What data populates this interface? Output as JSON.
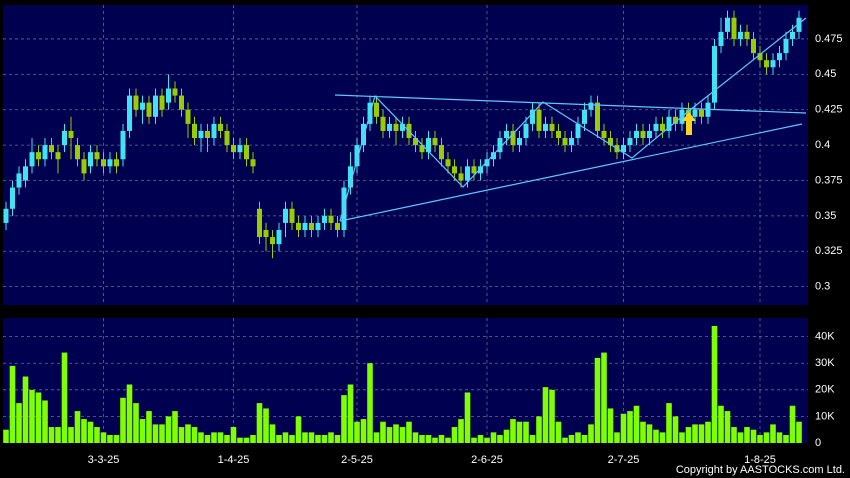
{
  "copyright": "Copyright by AASTOCKS.com Ltd.",
  "chart_data": [
    {
      "type": "candlestick",
      "up_color": "#3fe3f3",
      "down_color": "#9acd00",
      "grid": true,
      "ylim": [
        0.287,
        0.499
      ],
      "yticks": [
        0.3,
        0.325,
        0.35,
        0.375,
        0.4,
        0.425,
        0.45,
        0.475
      ],
      "open": [
        0.345,
        0.355,
        0.37,
        0.375,
        0.385,
        0.395,
        0.39,
        0.4,
        0.395,
        0.4,
        0.41,
        0.4,
        0.39,
        0.385,
        0.395,
        0.39,
        0.385,
        0.39,
        0.39,
        0.41,
        0.435,
        0.425,
        0.43,
        0.42,
        0.435,
        0.43,
        0.44,
        0.435,
        0.425,
        0.415,
        0.405,
        0.41,
        0.405,
        0.415,
        0.41,
        0.4,
        0.395,
        0.4,
        0.39,
        0.355,
        0.34,
        0.335,
        0.33,
        0.345,
        0.355,
        0.345,
        0.34,
        0.345,
        0.34,
        0.345,
        0.35,
        0.345,
        0.34,
        0.37,
        0.385,
        0.4,
        0.415,
        0.43,
        0.42,
        0.41,
        0.415,
        0.41,
        0.415,
        0.405,
        0.4,
        0.395,
        0.405,
        0.4,
        0.39,
        0.385,
        0.38,
        0.375,
        0.385,
        0.38,
        0.385,
        0.39,
        0.395,
        0.405,
        0.41,
        0.4,
        0.405,
        0.415,
        0.425,
        0.41,
        0.415,
        0.41,
        0.405,
        0.4,
        0.405,
        0.415,
        0.425,
        0.43,
        0.41,
        0.405,
        0.4,
        0.395,
        0.4,
        0.405,
        0.41,
        0.405,
        0.41,
        0.415,
        0.41,
        0.42,
        0.415,
        0.425,
        0.42,
        0.425,
        0.42,
        0.43,
        0.47,
        0.48,
        0.49,
        0.475,
        0.48,
        0.475,
        0.465,
        0.46,
        0.455,
        0.46,
        0.465,
        0.475,
        0.48
      ],
      "high": [
        0.36,
        0.375,
        0.385,
        0.39,
        0.405,
        0.4,
        0.405,
        0.405,
        0.4,
        0.415,
        0.42,
        0.405,
        0.395,
        0.4,
        0.4,
        0.395,
        0.395,
        0.395,
        0.415,
        0.44,
        0.44,
        0.435,
        0.435,
        0.44,
        0.44,
        0.45,
        0.445,
        0.44,
        0.43,
        0.42,
        0.415,
        0.415,
        0.42,
        0.42,
        0.415,
        0.405,
        0.405,
        0.405,
        0.395,
        0.36,
        0.345,
        0.34,
        0.345,
        0.36,
        0.36,
        0.35,
        0.35,
        0.35,
        0.35,
        0.355,
        0.355,
        0.35,
        0.375,
        0.395,
        0.405,
        0.42,
        0.435,
        0.435,
        0.425,
        0.42,
        0.42,
        0.42,
        0.42,
        0.41,
        0.405,
        0.41,
        0.41,
        0.405,
        0.395,
        0.39,
        0.385,
        0.39,
        0.39,
        0.39,
        0.395,
        0.4,
        0.41,
        0.415,
        0.415,
        0.41,
        0.42,
        0.43,
        0.43,
        0.42,
        0.42,
        0.415,
        0.41,
        0.41,
        0.42,
        0.43,
        0.435,
        0.435,
        0.415,
        0.41,
        0.405,
        0.405,
        0.41,
        0.415,
        0.415,
        0.415,
        0.42,
        0.42,
        0.425,
        0.425,
        0.43,
        0.43,
        0.43,
        0.43,
        0.435,
        0.475,
        0.49,
        0.495,
        0.495,
        0.485,
        0.485,
        0.48,
        0.47,
        0.465,
        0.465,
        0.47,
        0.48,
        0.485,
        0.495
      ],
      "low": [
        0.34,
        0.35,
        0.365,
        0.37,
        0.38,
        0.385,
        0.385,
        0.39,
        0.38,
        0.395,
        0.39,
        0.385,
        0.375,
        0.38,
        0.385,
        0.38,
        0.38,
        0.38,
        0.385,
        0.405,
        0.42,
        0.415,
        0.415,
        0.415,
        0.42,
        0.425,
        0.43,
        0.42,
        0.405,
        0.4,
        0.395,
        0.395,
        0.4,
        0.405,
        0.395,
        0.39,
        0.39,
        0.385,
        0.38,
        0.33,
        0.325,
        0.32,
        0.325,
        0.335,
        0.34,
        0.335,
        0.335,
        0.335,
        0.335,
        0.34,
        0.34,
        0.335,
        0.335,
        0.365,
        0.38,
        0.395,
        0.41,
        0.415,
        0.405,
        0.405,
        0.4,
        0.405,
        0.4,
        0.395,
        0.39,
        0.39,
        0.395,
        0.385,
        0.38,
        0.375,
        0.37,
        0.37,
        0.375,
        0.375,
        0.38,
        0.385,
        0.39,
        0.4,
        0.395,
        0.395,
        0.4,
        0.41,
        0.405,
        0.405,
        0.405,
        0.4,
        0.395,
        0.395,
        0.4,
        0.41,
        0.42,
        0.405,
        0.4,
        0.395,
        0.39,
        0.39,
        0.395,
        0.4,
        0.4,
        0.4,
        0.405,
        0.405,
        0.405,
        0.41,
        0.41,
        0.415,
        0.415,
        0.415,
        0.415,
        0.425,
        0.465,
        0.475,
        0.47,
        0.47,
        0.47,
        0.46,
        0.455,
        0.45,
        0.45,
        0.455,
        0.46,
        0.47,
        0.475
      ],
      "close": [
        0.355,
        0.37,
        0.38,
        0.385,
        0.395,
        0.39,
        0.4,
        0.395,
        0.39,
        0.41,
        0.405,
        0.39,
        0.38,
        0.395,
        0.39,
        0.385,
        0.39,
        0.385,
        0.41,
        0.435,
        0.425,
        0.43,
        0.42,
        0.435,
        0.425,
        0.44,
        0.435,
        0.425,
        0.415,
        0.405,
        0.41,
        0.405,
        0.415,
        0.41,
        0.4,
        0.395,
        0.4,
        0.39,
        0.385,
        0.335,
        0.335,
        0.33,
        0.34,
        0.355,
        0.345,
        0.34,
        0.345,
        0.34,
        0.345,
        0.35,
        0.345,
        0.34,
        0.37,
        0.385,
        0.4,
        0.415,
        0.43,
        0.42,
        0.41,
        0.415,
        0.41,
        0.415,
        0.405,
        0.4,
        0.395,
        0.405,
        0.4,
        0.39,
        0.385,
        0.38,
        0.375,
        0.385,
        0.38,
        0.385,
        0.39,
        0.395,
        0.405,
        0.41,
        0.4,
        0.405,
        0.415,
        0.425,
        0.41,
        0.415,
        0.41,
        0.405,
        0.4,
        0.405,
        0.415,
        0.425,
        0.43,
        0.41,
        0.405,
        0.4,
        0.395,
        0.4,
        0.405,
        0.41,
        0.405,
        0.41,
        0.415,
        0.41,
        0.42,
        0.415,
        0.425,
        0.42,
        0.425,
        0.42,
        0.43,
        0.47,
        0.48,
        0.49,
        0.475,
        0.48,
        0.475,
        0.465,
        0.46,
        0.455,
        0.46,
        0.465,
        0.475,
        0.48,
        0.49
      ]
    },
    {
      "type": "bar",
      "color": "#80ff00",
      "grid": true,
      "ylim": [
        0,
        47000
      ],
      "yticks": [
        0,
        {
          "value": 10000,
          "label": "10K"
        },
        {
          "value": 20000,
          "label": "20K"
        },
        {
          "value": 30000,
          "label": "30K"
        },
        {
          "value": 40000,
          "label": "40K"
        }
      ],
      "categories": [
        null,
        null,
        null,
        null,
        null,
        null,
        null,
        null,
        null,
        null,
        null,
        null,
        null,
        null,
        null,
        "3-3-25",
        null,
        null,
        null,
        null,
        null,
        null,
        null,
        null,
        null,
        null,
        null,
        null,
        null,
        null,
        null,
        null,
        null,
        null,
        null,
        "1-4-25",
        null,
        null,
        null,
        null,
        null,
        null,
        null,
        null,
        null,
        null,
        null,
        null,
        null,
        null,
        null,
        null,
        null,
        null,
        "2-5-25",
        null,
        null,
        null,
        null,
        null,
        null,
        null,
        null,
        null,
        null,
        null,
        null,
        null,
        null,
        null,
        null,
        null,
        null,
        null,
        "2-6-25",
        null,
        null,
        null,
        null,
        null,
        null,
        null,
        null,
        null,
        null,
        null,
        null,
        null,
        null,
        null,
        null,
        null,
        null,
        null,
        null,
        "2-7-25",
        null,
        null,
        null,
        null,
        null,
        null,
        null,
        null,
        null,
        null,
        null,
        null,
        null,
        null,
        null,
        null,
        null,
        null,
        null,
        null,
        "1-8-25",
        null,
        null,
        null,
        null,
        null,
        null
      ],
      "values": [
        5000,
        29000,
        15000,
        25000,
        20000,
        19000,
        16000,
        6000,
        6000,
        34000,
        6000,
        12000,
        9000,
        8000,
        6000,
        4000,
        3000,
        3000,
        17000,
        22000,
        15000,
        9000,
        12000,
        7000,
        7000,
        10000,
        12000,
        6000,
        7000,
        6000,
        4000,
        3000,
        4000,
        4000,
        3000,
        6000,
        2000,
        2000,
        3000,
        15000,
        13000,
        7000,
        3000,
        4000,
        3000,
        10000,
        4000,
        4000,
        3000,
        3000,
        4000,
        3000,
        18000,
        22000,
        8000,
        9000,
        30000,
        4000,
        8000,
        6000,
        7000,
        6000,
        8000,
        4000,
        3000,
        3000,
        2000,
        3000,
        2000,
        6000,
        9000,
        19000,
        2000,
        3000,
        2000,
        4000,
        3000,
        5000,
        9000,
        8000,
        8000,
        3000,
        10000,
        21000,
        20000,
        8000,
        2000,
        3000,
        4000,
        3000,
        7000,
        32000,
        34000,
        13000,
        4000,
        11000,
        12000,
        14000,
        8000,
        7000,
        5000,
        4000,
        15000,
        10000,
        4000,
        6000,
        7000,
        7000,
        8000,
        44000,
        14000,
        12000,
        6000,
        4000,
        6000,
        5000,
        3000,
        4000,
        7000,
        4000,
        3000,
        14000,
        8000
      ]
    }
  ]
}
